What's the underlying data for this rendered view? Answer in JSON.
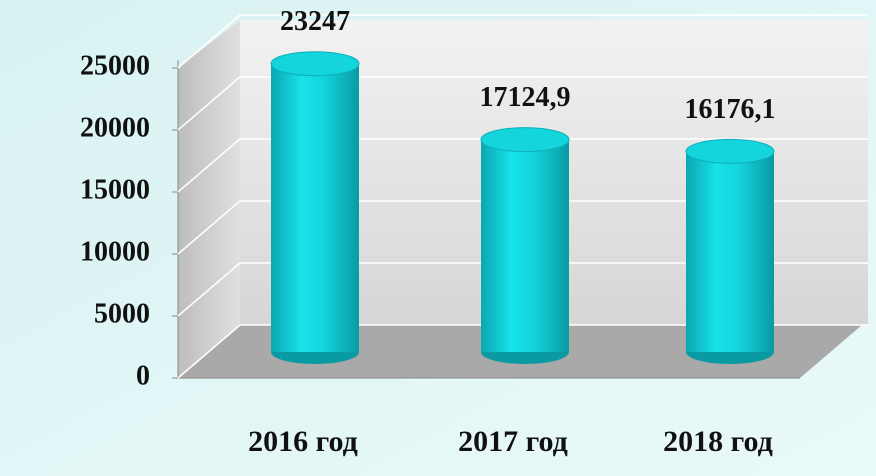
{
  "chart_data": {
    "type": "bar",
    "categories": [
      "2016 год",
      "2017 год",
      "2018 год"
    ],
    "values": [
      23247,
      17124.9,
      16176.1
    ],
    "value_labels": [
      "23247",
      "17124,9",
      "16176,1"
    ],
    "color": "#14d4dc",
    "ylim": [
      0,
      25000
    ],
    "yticks": [
      0,
      5000,
      10000,
      15000,
      20000,
      25000
    ],
    "grid": true
  }
}
